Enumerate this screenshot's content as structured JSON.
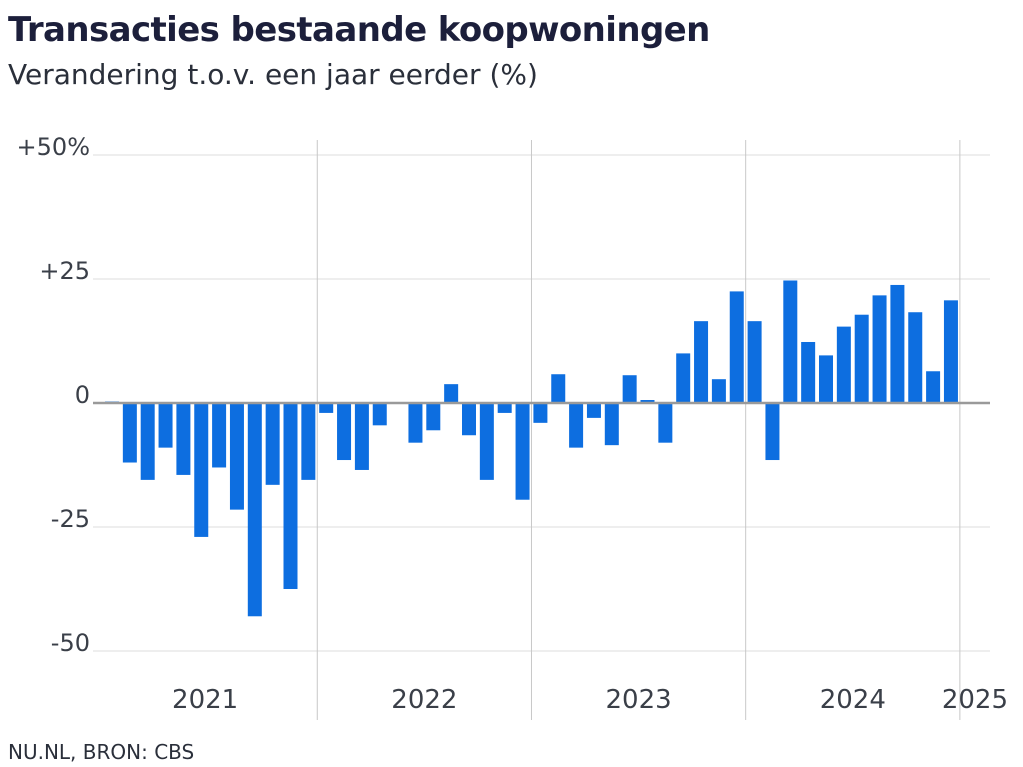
{
  "header": {
    "title": "Transacties bestaande koopwoningen",
    "subtitle": "Verandering t.o.v. een jaar eerder (%)"
  },
  "footer": {
    "source": "NU.NL, BRON: CBS"
  },
  "colors": {
    "bar": "#0d6ee0",
    "gridline": "#dcdcdc",
    "year_separator": "#c8c8c8",
    "zero_line": "#9a9a9a"
  },
  "chart_data": {
    "type": "bar",
    "title": "Transacties bestaande koopwoningen",
    "subtitle": "Verandering t.o.v. een jaar eerder (%)",
    "ylim": [
      -50,
      50
    ],
    "y_ticks": [
      {
        "value": 50,
        "label": "+50%"
      },
      {
        "value": 25,
        "label": "+25"
      },
      {
        "value": 0,
        "label": "0"
      },
      {
        "value": -25,
        "label": "-25"
      },
      {
        "value": -50,
        "label": "-50"
      }
    ],
    "x_start": "2021-01",
    "years": [
      {
        "label": "2021",
        "first_month_index": 0
      },
      {
        "label": "2022",
        "first_month_index": 12
      },
      {
        "label": "2023",
        "first_month_index": 24
      },
      {
        "label": "2024",
        "first_month_index": 36
      },
      {
        "label": "2025",
        "first_month_index": 48
      }
    ],
    "values": [
      0.3,
      -12,
      -15.5,
      -9,
      -14.5,
      -27,
      -13,
      -21.5,
      -43,
      -16.5,
      -37.5,
      -15.5,
      -2,
      -11.5,
      -13.5,
      -4.5,
      0,
      -8,
      -5.5,
      3.8,
      -6.5,
      -15.5,
      -2,
      -19.5,
      -4,
      5.8,
      -9,
      -3,
      -8.5,
      5.6,
      0.6,
      -8,
      10,
      16.5,
      4.8,
      22.5,
      16.5,
      -11.5,
      24.7,
      12.3,
      9.6,
      15.4,
      17.8,
      21.7,
      23.8,
      18.3,
      6.4,
      20.7
    ]
  }
}
